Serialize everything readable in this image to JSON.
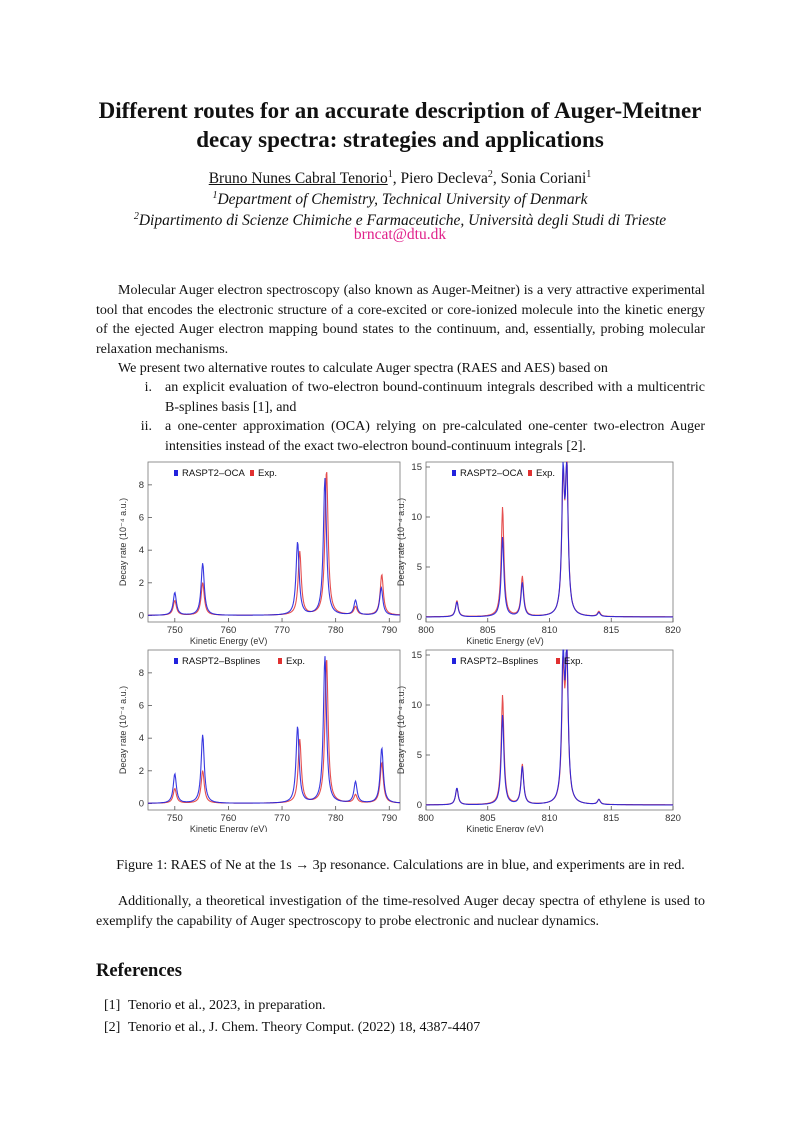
{
  "title_line1": "Different routes for an accurate description of Auger-Meitner",
  "title_line2": "decay spectra: strategies and applications",
  "authors": {
    "a1": "Bruno Nunes Cabral Tenorio",
    "a1_sup": "1",
    "sep1": ", ",
    "a2": "Piero Decleva",
    "a2_sup": "2",
    "sep2": ", ",
    "a3": "Sonia Coriani",
    "a3_sup": "1"
  },
  "affiliations": [
    {
      "sup": "1",
      "text": "Department of Chemistry, Technical University of Denmark"
    },
    {
      "sup": "2",
      "text": "Dipartimento di Scienze Chimiche e Farmaceutiche, Università degli Studi di Trieste"
    }
  ],
  "email": "brncat@dtu.dk",
  "abstract": "Molecular Auger electron spectroscopy (also known as Auger-Meitner) is a very attractive experimental tool that encodes the electronic structure of a core-excited or core-ionized molecule into the kinetic energy of the ejected Auger electron mapping bound states to the continuum, and, essentially, probing molecular relaxation mechanisms.",
  "routes_intro": "We present two alternative routes to calculate Auger spectra (RAES and AES) based on",
  "routes": [
    {
      "num": "i.",
      "text": "an explicit evaluation of two-electron bound-continuum integrals described with a multicentric B-splines basis [1], and"
    },
    {
      "num": "ii.",
      "text": "a one-center approximation (OCA) relying on pre-calculated one-center two-electron Auger intensities instead of the exact two-electron bound-continuum integrals [2]."
    }
  ],
  "caption": "Figure 1: RAES of Ne at the 1s → 3p resonance. Calculations are in blue, and experiments are in red.",
  "closing": "Additionally, a theoretical investigation of the time-resolved Auger decay spectra of ethylene is used to exemplify the capability of Auger spectroscopy to probe electronic and nuclear dynamics.",
  "references_heading": "References",
  "references": [
    {
      "num": "[1]",
      "text": "Tenorio et al., 2023, in preparation."
    },
    {
      "num": "[2]",
      "text": "Tenorio et al., J. Chem. Theory Comput. (2022) 18, 4387-4407"
    }
  ],
  "colors": {
    "calc": "#2222dd",
    "exp": "#e03030",
    "email": "#e0218a"
  },
  "chart_data": [
    {
      "type": "line",
      "xlabel": "Kinetic Energy (eV)",
      "ylabel": "Decay rate (10⁻⁴ a.u.)",
      "xlim": [
        745,
        792
      ],
      "ylim": [
        -0.4,
        9.4
      ],
      "xticks": [
        "750",
        "760",
        "770",
        "780",
        "790"
      ],
      "yticks": [
        "0",
        "2",
        "4",
        "6",
        "8"
      ],
      "legend": "top-left",
      "series": [
        {
          "name": "RASPT2–OCA",
          "peaks": [
            [
              750.0,
              1.4
            ],
            [
              755.2,
              3.2
            ],
            [
              772.9,
              4.5
            ],
            [
              778.0,
              8.4
            ],
            [
              783.7,
              0.9
            ],
            [
              788.5,
              1.7
            ]
          ]
        },
        {
          "name": "Exp.",
          "peaks": [
            [
              750.0,
              0.9
            ],
            [
              755.2,
              2.0
            ],
            [
              773.3,
              3.9
            ],
            [
              778.3,
              8.9
            ],
            [
              783.7,
              0.5
            ],
            [
              788.6,
              2.5
            ]
          ]
        }
      ]
    },
    {
      "type": "line",
      "xlabel": "Kinetic Energy (eV)",
      "ylabel": "Decay rate (10⁻⁴ a.u.)",
      "xlim": [
        800,
        820
      ],
      "ylim": [
        -0.5,
        15.5
      ],
      "xticks": [
        "800",
        "805",
        "810",
        "815",
        "820"
      ],
      "yticks": [
        "0",
        "5",
        "10",
        "15"
      ],
      "legend": "top-left",
      "series": [
        {
          "name": "RASPT2–OCA",
          "peaks": [
            [
              802.5,
              1.5
            ],
            [
              806.2,
              8.0
            ],
            [
              807.8,
              3.4
            ],
            [
              811.1,
              13.4
            ],
            [
              811.4,
              14.0
            ],
            [
              814.0,
              0.4
            ]
          ]
        },
        {
          "name": "Exp.",
          "peaks": [
            [
              802.5,
              1.6
            ],
            [
              806.2,
              11.0
            ],
            [
              807.8,
              4.0
            ],
            [
              811.1,
              12.6
            ],
            [
              811.4,
              14.6
            ],
            [
              814.0,
              0.5
            ]
          ]
        }
      ]
    },
    {
      "type": "line",
      "xlabel": "Kinetic Energy (eV)",
      "ylabel": "Decay rate (10⁻⁴ a.u.)",
      "xlim": [
        745,
        792
      ],
      "ylim": [
        -0.4,
        9.4
      ],
      "xticks": [
        "750",
        "760",
        "770",
        "780",
        "790"
      ],
      "yticks": [
        "0",
        "2",
        "4",
        "6",
        "8"
      ],
      "legend": "top-left",
      "series": [
        {
          "name": "RASPT2–Bsplines",
          "peaks": [
            [
              750.0,
              1.8
            ],
            [
              755.2,
              4.2
            ],
            [
              772.9,
              4.7
            ],
            [
              778.0,
              9.0
            ],
            [
              783.7,
              1.3
            ],
            [
              788.6,
              3.4
            ]
          ]
        },
        {
          "name": "Exp.",
          "peaks": [
            [
              750.0,
              0.9
            ],
            [
              755.2,
              2.0
            ],
            [
              773.3,
              3.9
            ],
            [
              778.3,
              8.9
            ],
            [
              783.7,
              0.5
            ],
            [
              788.6,
              2.5
            ]
          ]
        }
      ]
    },
    {
      "type": "line",
      "xlabel": "Kinetic Energy (eV)",
      "ylabel": "Decay rate (10⁻⁴ a.u.)",
      "xlim": [
        800,
        820
      ],
      "ylim": [
        -0.5,
        15.5
      ],
      "xticks": [
        "800",
        "805",
        "810",
        "815",
        "820"
      ],
      "yticks": [
        "0",
        "5",
        "10",
        "15"
      ],
      "legend": "top-left",
      "series": [
        {
          "name": "RASPT2–Bsplines",
          "peaks": [
            [
              802.5,
              1.7
            ],
            [
              806.2,
              9.0
            ],
            [
              807.8,
              3.8
            ],
            [
              811.1,
              14.0
            ],
            [
              811.4,
              15.0
            ],
            [
              814.0,
              0.5
            ]
          ]
        },
        {
          "name": "Exp.",
          "peaks": [
            [
              802.5,
              1.6
            ],
            [
              806.2,
              11.0
            ],
            [
              807.8,
              4.0
            ],
            [
              811.1,
              12.6
            ],
            [
              811.4,
              14.6
            ],
            [
              814.0,
              0.5
            ]
          ]
        }
      ]
    }
  ]
}
